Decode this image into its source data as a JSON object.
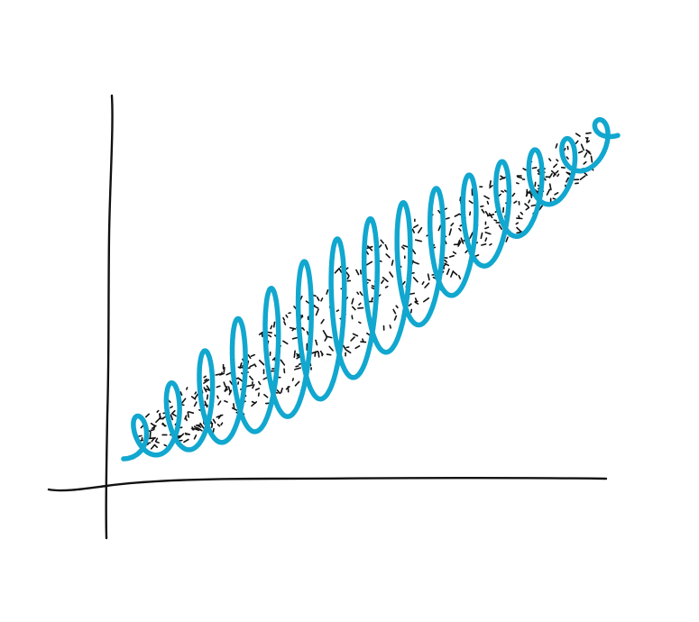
{
  "chart_data": {
    "type": "line",
    "style": "hand-drawn sketch",
    "title": "",
    "xlabel": "",
    "ylabel": "",
    "xlim": [
      0,
      10
    ],
    "ylim": [
      0,
      10
    ],
    "grid": false,
    "legend": "none",
    "series": [
      {
        "kind": "spiral-curve",
        "color": "#11a7cf",
        "x": [
          0.3,
          1.0,
          2.0,
          3.0,
          4.0,
          5.0,
          6.0,
          7.0,
          8.0,
          9.0,
          10.0
        ],
        "center": [
          0.8,
          1.3,
          2.0,
          2.8,
          3.6,
          4.4,
          5.2,
          6.0,
          6.8,
          7.6,
          8.6
        ],
        "half_width": [
          0.3,
          0.7,
          1.2,
          1.6,
          1.8,
          1.8,
          1.6,
          1.3,
          1.0,
          0.6,
          0.3
        ],
        "loops": 15
      },
      {
        "kind": "scatter-band",
        "color": "#111111",
        "x": [
          0.6,
          1.5,
          2.5,
          3.5,
          4.5,
          5.5,
          6.5,
          7.5,
          8.5,
          9.5
        ],
        "lower": [
          0.7,
          0.9,
          1.4,
          2.1,
          2.9,
          3.6,
          4.5,
          5.4,
          6.3,
          7.5
        ],
        "upper": [
          1.4,
          2.2,
          3.0,
          4.1,
          5.1,
          5.9,
          6.6,
          7.2,
          7.9,
          8.6
        ]
      }
    ]
  }
}
